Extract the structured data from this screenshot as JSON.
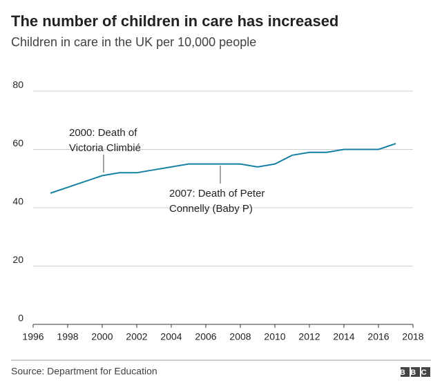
{
  "chart_data": {
    "type": "line",
    "title": "The number of children in care has increased",
    "subtitle": "Children in care in the UK per 10,000 people",
    "x": [
      1997,
      1998,
      1999,
      2000,
      2001,
      2002,
      2003,
      2004,
      2005,
      2006,
      2007,
      2008,
      2009,
      2010,
      2011,
      2012,
      2013,
      2014,
      2015,
      2016,
      2017
    ],
    "series": [
      {
        "color": "#1380a1",
        "values": [
          45,
          47,
          49,
          51,
          52,
          52,
          53,
          54,
          55,
          55,
          55,
          55,
          54,
          55,
          58,
          59,
          59,
          60,
          60,
          60,
          62
        ]
      }
    ],
    "xlim": [
      1996,
      2018
    ],
    "xticks": [
      1996,
      1998,
      2000,
      2002,
      2004,
      2006,
      2008,
      2010,
      2012,
      2014,
      2016,
      2018
    ],
    "ylim": [
      0,
      80
    ],
    "yticks": [
      0,
      20,
      40,
      60,
      80
    ],
    "grid": true,
    "annotations": [
      [
        "2000: Death of",
        "Victoria Climbié"
      ],
      [
        "2007: Death of Peter",
        "Connelly (Baby P)"
      ]
    ],
    "source": "Source: Department for Education",
    "logo": "BBC"
  }
}
